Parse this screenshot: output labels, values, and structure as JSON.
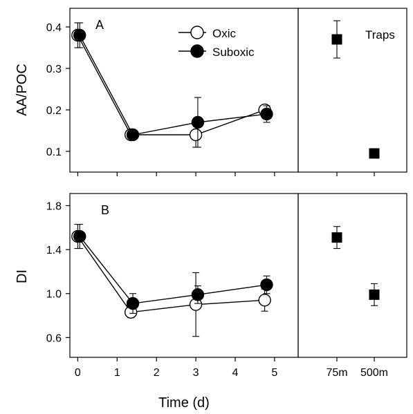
{
  "chart_data": {
    "type": "scatter",
    "xlabel": "Time (d)",
    "x_ticks": [
      "0",
      "1",
      "2",
      "3",
      "4",
      "5"
    ],
    "xlim": [
      -0.2,
      5.6
    ],
    "trap_categories": [
      "75m",
      "500m"
    ],
    "legend": {
      "placement": "top",
      "entries": [
        {
          "label": "Oxic",
          "marker": "open-circle"
        },
        {
          "label": "Suboxic",
          "marker": "filled-circle"
        }
      ]
    },
    "panels": [
      {
        "label": "A",
        "ylabel": "AA/POC",
        "ylim": [
          0.05,
          0.445
        ],
        "y_ticks": [
          "0.1",
          "0.2",
          "0.3",
          "0.4"
        ],
        "series": [
          {
            "name": "Oxic",
            "x": [
              0,
              1.35,
              3.0,
              4.75
            ],
            "y": [
              0.38,
              0.14,
              0.14,
              0.2
            ],
            "err": [
              0.03,
              0.005,
              0.03,
              0.01
            ]
          },
          {
            "name": "Suboxic",
            "x": [
              0.05,
              1.4,
              3.05,
              4.8
            ],
            "y": [
              0.38,
              0.14,
              0.17,
              0.19
            ],
            "err": [
              0.03,
              0.005,
              0.06,
              0.02
            ]
          }
        ],
        "traps": {
          "title": "Traps",
          "values": [
            0.37,
            0.095
          ],
          "err": [
            0.045,
            0.0
          ]
        }
      },
      {
        "label": "B",
        "ylabel": "DI",
        "ylim": [
          0.42,
          1.91
        ],
        "y_ticks": [
          "0.6",
          "1.0",
          "1.4",
          "1.8"
        ],
        "series": [
          {
            "name": "Oxic",
            "x": [
              0,
              1.35,
              3.0,
              4.75
            ],
            "y": [
              1.52,
              0.83,
              0.9,
              0.94
            ],
            "err": [
              0.11,
              0.05,
              0.29,
              0.1
            ]
          },
          {
            "name": "Suboxic",
            "x": [
              0.05,
              1.4,
              3.05,
              4.8
            ],
            "y": [
              1.52,
              0.91,
              0.99,
              1.08
            ],
            "err": [
              0.11,
              0.09,
              0.08,
              0.08
            ]
          }
        ],
        "traps": {
          "title": "",
          "values": [
            1.51,
            0.99
          ],
          "err": [
            0.1,
            0.1
          ]
        }
      }
    ]
  }
}
